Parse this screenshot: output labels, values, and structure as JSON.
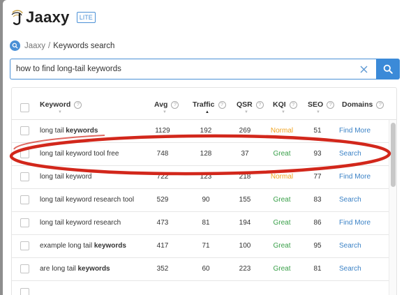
{
  "brand": {
    "name": "Jaaxy",
    "badge": "LITE"
  },
  "breadcrumb": {
    "root": "Jaaxy",
    "separator": "/",
    "current": "Keywords search"
  },
  "search": {
    "value": "how to find long-tail keywords"
  },
  "table": {
    "headers": {
      "keyword": "Keyword",
      "avg": "Avg",
      "traffic": "Traffic",
      "qsr": "QSR",
      "kqi": "KQI",
      "seo": "SEO",
      "domains": "Domains"
    },
    "help_glyph": "?",
    "sorted_by": "traffic",
    "rows": [
      {
        "kw_pre": "long tail ",
        "kw_bold": "keywords",
        "kw_post": "",
        "avg": "1129",
        "traffic": "192",
        "qsr": "269",
        "kqi": "Normal",
        "seo": "51",
        "domains": "Find More"
      },
      {
        "kw_pre": "long tail keyword tool free",
        "kw_bold": "",
        "kw_post": "",
        "avg": "748",
        "traffic": "128",
        "qsr": "37",
        "kqi": "Great",
        "seo": "93",
        "domains": "Search"
      },
      {
        "kw_pre": "long tail keyword",
        "kw_bold": "",
        "kw_post": "",
        "avg": "722",
        "traffic": "123",
        "qsr": "218",
        "kqi": "Normal",
        "seo": "77",
        "domains": "Find More"
      },
      {
        "kw_pre": "long tail keyword research tool",
        "kw_bold": "",
        "kw_post": "",
        "avg": "529",
        "traffic": "90",
        "qsr": "155",
        "kqi": "Great",
        "seo": "83",
        "domains": "Search"
      },
      {
        "kw_pre": "long tail keyword research",
        "kw_bold": "",
        "kw_post": "",
        "avg": "473",
        "traffic": "81",
        "qsr": "194",
        "kqi": "Great",
        "seo": "86",
        "domains": "Find More"
      },
      {
        "kw_pre": "example long tail ",
        "kw_bold": "keywords",
        "kw_post": "",
        "avg": "417",
        "traffic": "71",
        "qsr": "100",
        "kqi": "Great",
        "seo": "95",
        "domains": "Search"
      },
      {
        "kw_pre": "are long tail ",
        "kw_bold": "keywords",
        "kw_post": "",
        "avg": "352",
        "traffic": "60",
        "qsr": "223",
        "kqi": "Great",
        "seo": "81",
        "domains": "Search"
      }
    ]
  },
  "annotation": {
    "highlighted_row_keyword": "long tail keyword tool free",
    "color": "#d2271b"
  },
  "colors": {
    "accent": "#3b8ad8",
    "kqi_normal": "#f0a320",
    "kqi_great": "#3aa04a",
    "link": "#3b82c6"
  },
  "icons": {
    "search_button": "search-icon",
    "clear": "close-icon",
    "breadcrumb": "search-icon",
    "help": "help-circle-icon"
  }
}
